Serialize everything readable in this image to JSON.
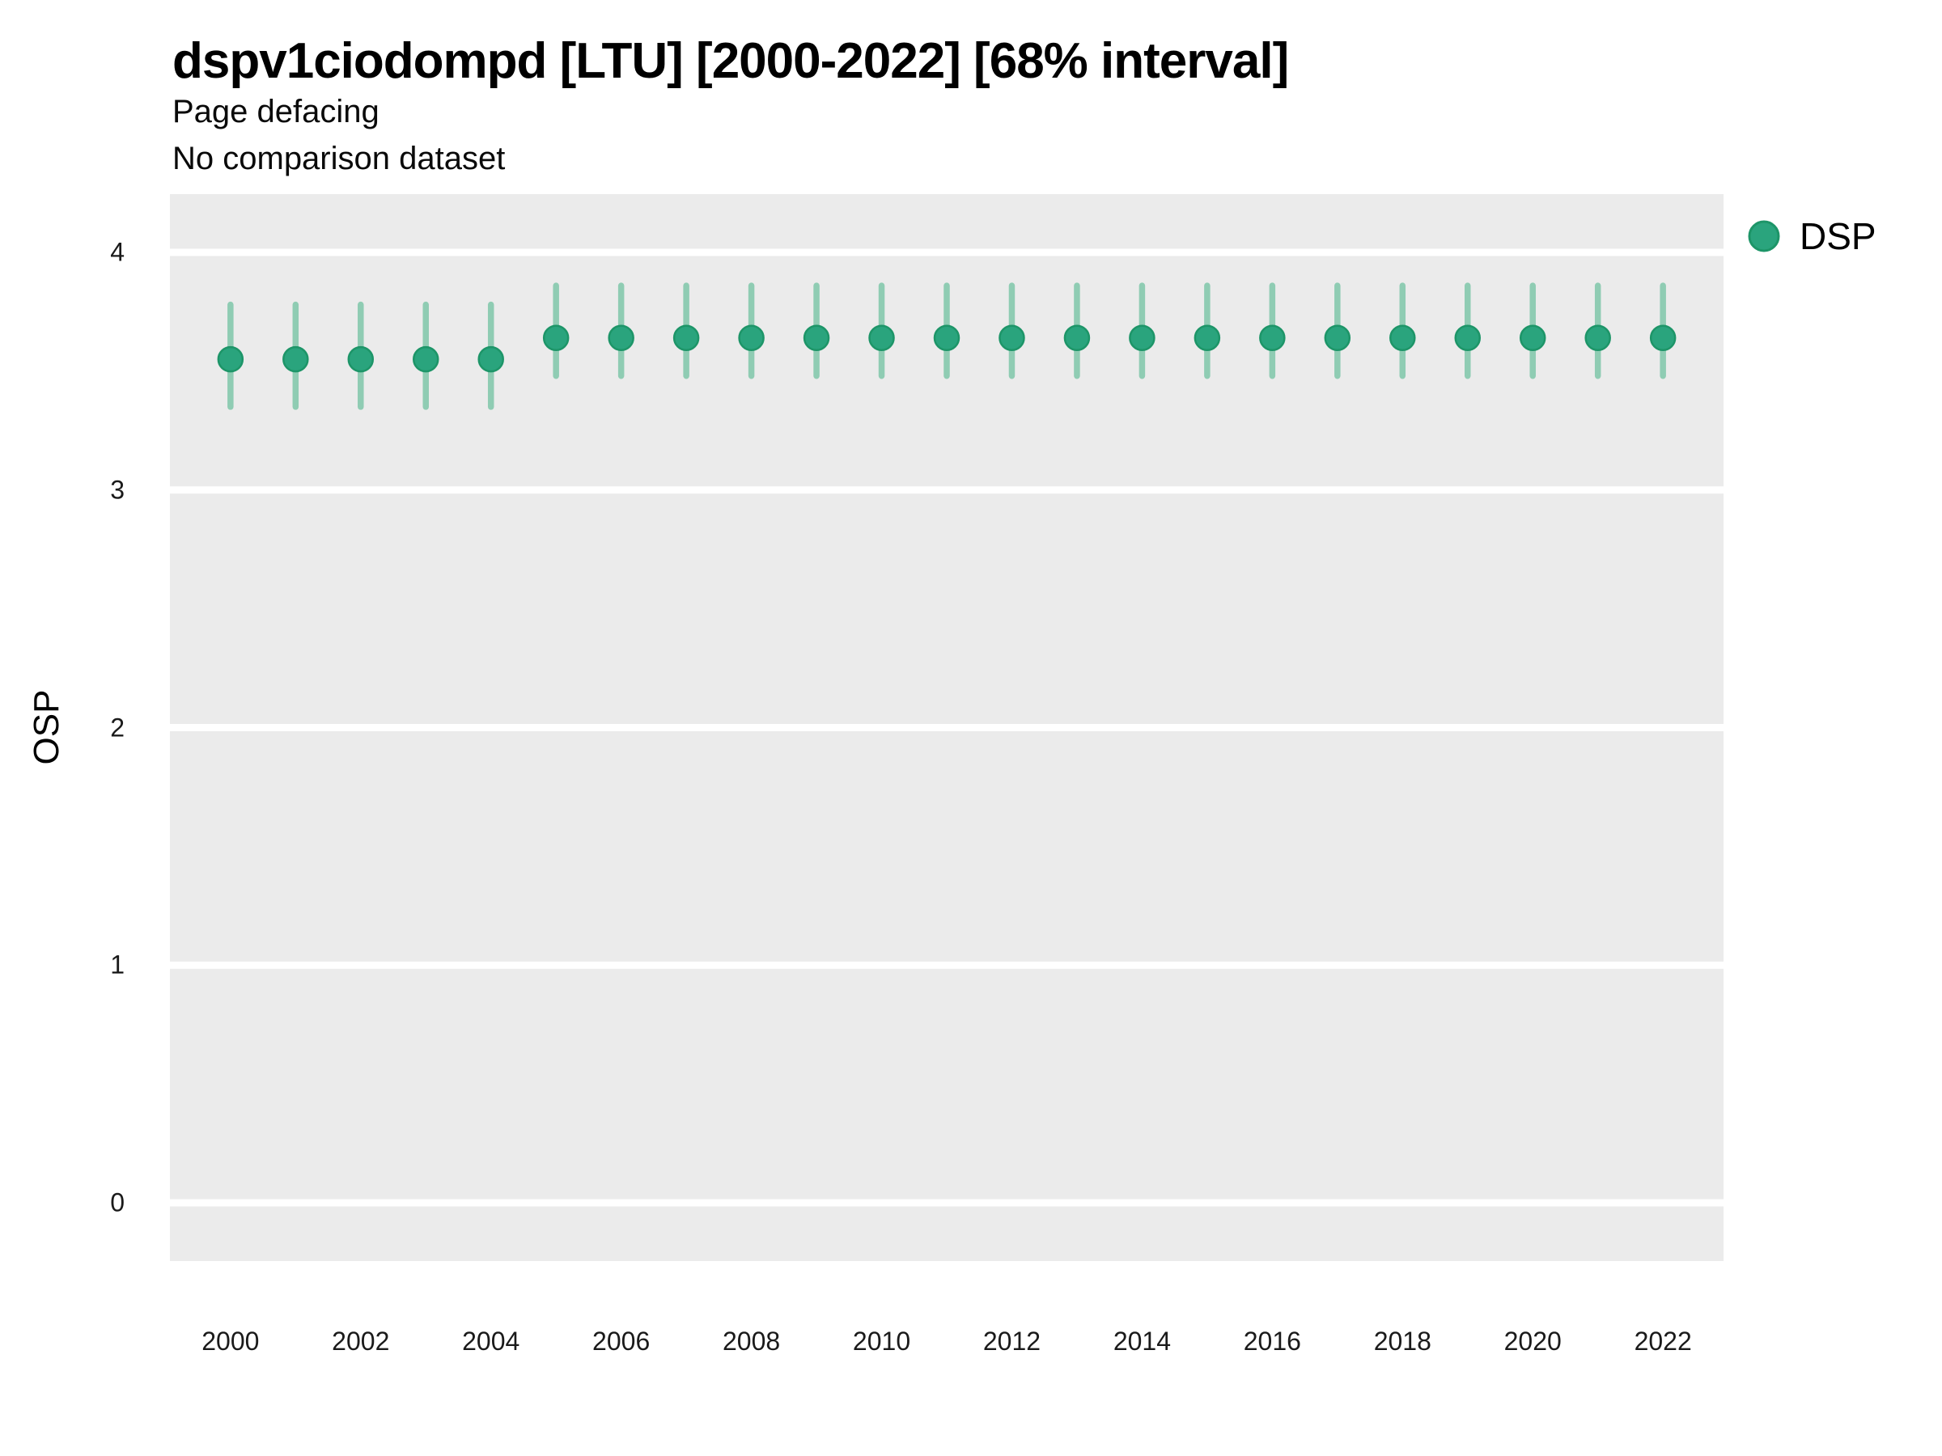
{
  "header": {
    "title": "dspv1ciodompd [LTU] [2000-2022] [68% interval]",
    "subtitle1": "Page defacing",
    "subtitle2": "No comparison dataset"
  },
  "legend": {
    "label": "DSP"
  },
  "colors": {
    "point_fill": "#2AA47D",
    "point_ring": "#1D9568",
    "error_bar": "#8FCCB3",
    "panel_background": "#EBEBEB",
    "gridline": "#FFFFFF",
    "tick_text": "#1A1A1A"
  },
  "chart_data": {
    "type": "scatter",
    "title": "dspv1ciodompd [LTU] [2000-2022] [68% interval]",
    "subtitle": "Page defacing",
    "note": "No comparison dataset",
    "xlabel": "",
    "ylabel": "OSP",
    "interval": "68%",
    "legend_position": "right",
    "grid": "major-horizontal-white-on-grey",
    "x": [
      2000,
      2001,
      2002,
      2003,
      2004,
      2005,
      2006,
      2007,
      2008,
      2009,
      2010,
      2011,
      2012,
      2013,
      2014,
      2015,
      2016,
      2017,
      2018,
      2019,
      2020,
      2021,
      2022
    ],
    "series": [
      {
        "name": "DSP",
        "mean": [
          3.55,
          3.55,
          3.55,
          3.55,
          3.55,
          3.64,
          3.64,
          3.64,
          3.64,
          3.64,
          3.64,
          3.64,
          3.64,
          3.64,
          3.64,
          3.64,
          3.64,
          3.64,
          3.64,
          3.64,
          3.64,
          3.64,
          3.64
        ],
        "lo": [
          3.35,
          3.35,
          3.35,
          3.35,
          3.35,
          3.48,
          3.48,
          3.48,
          3.48,
          3.48,
          3.48,
          3.48,
          3.48,
          3.48,
          3.48,
          3.48,
          3.48,
          3.48,
          3.48,
          3.48,
          3.48,
          3.48,
          3.48
        ],
        "hi": [
          3.78,
          3.78,
          3.78,
          3.78,
          3.78,
          3.86,
          3.86,
          3.86,
          3.86,
          3.86,
          3.86,
          3.86,
          3.86,
          3.86,
          3.86,
          3.86,
          3.86,
          3.86,
          3.86,
          3.86,
          3.86,
          3.86,
          3.86
        ]
      }
    ],
    "xlim": [
      1999.07,
      2022.93
    ],
    "ylim": [
      -0.245,
      4.245
    ],
    "yticks": [
      0,
      1,
      2,
      3,
      4
    ],
    "xticks": [
      2000,
      2002,
      2004,
      2006,
      2008,
      2010,
      2012,
      2014,
      2016,
      2018,
      2020,
      2022
    ]
  }
}
